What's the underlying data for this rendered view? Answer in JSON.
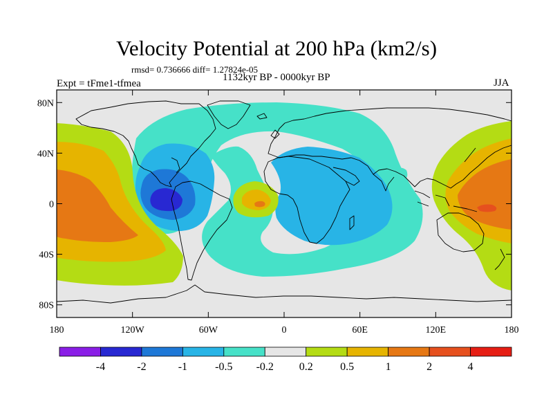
{
  "title": "Velocity Potential at 200 hPa (km2/s)",
  "stats": "rmsd= 0.736666 diff= 1.27824e-05",
  "experiment": "Expt = tFme1-tfmea",
  "period": "1132kyr BP - 0000kyr BP",
  "season": "JJA",
  "axes": {
    "y_ticks": [
      {
        "lat": 80,
        "label": "80N"
      },
      {
        "lat": 40,
        "label": "40N"
      },
      {
        "lat": 0,
        "label": "0"
      },
      {
        "lat": -40,
        "label": "40S"
      },
      {
        "lat": -80,
        "label": "80S"
      }
    ],
    "x_ticks": [
      {
        "lon": -180,
        "label": "180"
      },
      {
        "lon": -120,
        "label": "120W"
      },
      {
        "lon": -60,
        "label": "60W"
      },
      {
        "lon": 0,
        "label": "0"
      },
      {
        "lon": 60,
        "label": "60E"
      },
      {
        "lon": 120,
        "label": "120E"
      },
      {
        "lon": 180,
        "label": "180"
      }
    ]
  },
  "colorbar": {
    "colors": [
      "#8a1ee6",
      "#2828d2",
      "#1e78d7",
      "#28b4e6",
      "#46e1c8",
      "#e6e6e6",
      "#b4dc14",
      "#e6b400",
      "#e67814",
      "#e6501e",
      "#e61e14"
    ],
    "labels": [
      "-4",
      "-2",
      "-1",
      "-0.5",
      "-0.2",
      "0.2",
      "0.5",
      "1",
      "2",
      "4"
    ]
  },
  "field": {
    "background": "#e6e6e6",
    "regions": [
      {
        "name": "atlantic-eurasian-negative-envelope",
        "level": "-0.2",
        "color": "#46e1c8"
      },
      {
        "name": "americas-negative-core",
        "level": "-0.5",
        "color": "#28b4e6"
      },
      {
        "name": "africa-indian-negative-core",
        "level": "-0.5",
        "color": "#28b4e6"
      },
      {
        "name": "eastern-pacific-negative",
        "level": "-1",
        "color": "#1e78d7"
      },
      {
        "name": "eastern-pacific-minimum",
        "level": "-2",
        "color": "#2828d2"
      },
      {
        "name": "central-pacific-positive",
        "level": "0.5",
        "color": "#b4dc14"
      },
      {
        "name": "central-pacific-positive-core",
        "level": "1",
        "color": "#e6b400"
      },
      {
        "name": "central-pacific-positive-max",
        "level": "2",
        "color": "#e67814"
      },
      {
        "name": "western-pacific-positive",
        "level": "0.5",
        "color": "#b4dc14"
      },
      {
        "name": "western-pacific-positive-core",
        "level": "1",
        "color": "#e6b400"
      },
      {
        "name": "western-pacific-positive-max",
        "level": "2",
        "color": "#e67814"
      },
      {
        "name": "western-pacific-positive-peak",
        "level": "4",
        "color": "#e6501e"
      },
      {
        "name": "equatorial-atlantic-positive",
        "level": "0.5",
        "color": "#b4dc14"
      },
      {
        "name": "equatorial-atlantic-positive-core",
        "level": "1",
        "color": "#e6b400"
      },
      {
        "name": "equatorial-atlantic-positive-max",
        "level": "2",
        "color": "#e67814"
      }
    ]
  }
}
